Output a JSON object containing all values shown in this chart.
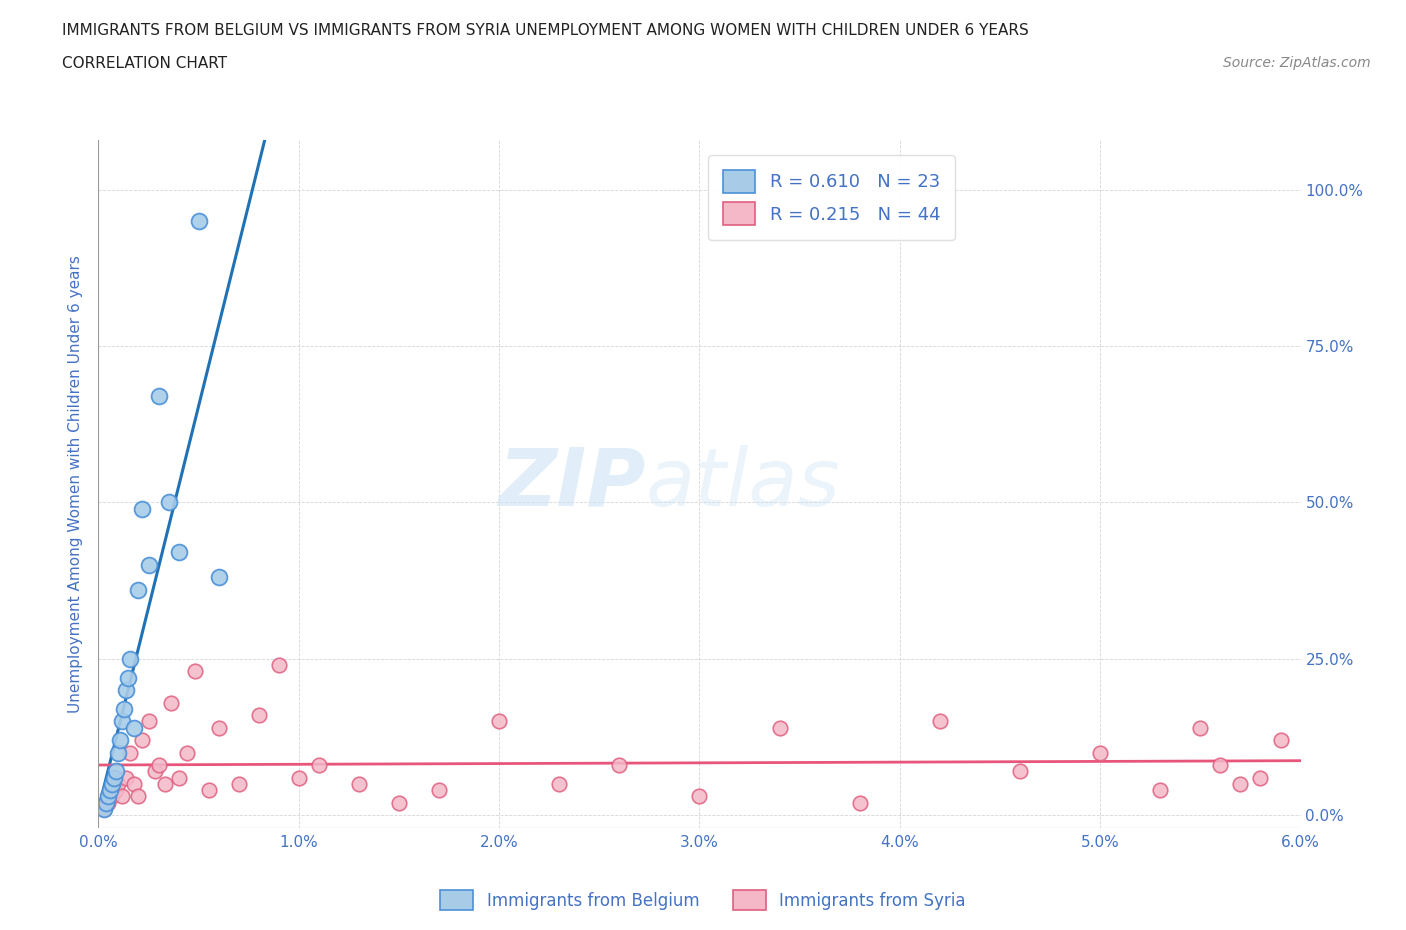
{
  "title_line1": "IMMIGRANTS FROM BELGIUM VS IMMIGRANTS FROM SYRIA UNEMPLOYMENT AMONG WOMEN WITH CHILDREN UNDER 6 YEARS",
  "title_line2": "CORRELATION CHART",
  "source": "Source: ZipAtlas.com",
  "ylabel": "Unemployment Among Women with Children Under 6 years",
  "watermark_zip": "ZIP",
  "watermark_atlas": "atlas",
  "belgium_color": "#a8cce8",
  "belgium_edge_color": "#4a90d9",
  "syria_color": "#f4b8c8",
  "syria_edge_color": "#e06080",
  "belgium_line_color": "#2171b5",
  "syria_line_color": "#e8557a",
  "legend_text_color": "#4472C4",
  "axis_color": "#4472C4",
  "R_belgium": 0.61,
  "N_belgium": 23,
  "R_syria": 0.215,
  "N_syria": 44,
  "xlim": [
    0.0,
    0.06
  ],
  "ylim": [
    -0.02,
    1.08
  ],
  "xtick_vals": [
    0.0,
    0.01,
    0.02,
    0.03,
    0.04,
    0.05,
    0.06
  ],
  "ytick_vals": [
    0.0,
    0.25,
    0.5,
    0.75,
    1.0
  ],
  "belgium_x": [
    0.0003,
    0.0004,
    0.0005,
    0.0006,
    0.0007,
    0.0008,
    0.0009,
    0.001,
    0.0011,
    0.0012,
    0.0013,
    0.0014,
    0.0015,
    0.0016,
    0.0018,
    0.002,
    0.0022,
    0.0025,
    0.003,
    0.0035,
    0.004,
    0.005,
    0.006
  ],
  "belgium_y": [
    0.01,
    0.02,
    0.03,
    0.04,
    0.05,
    0.06,
    0.07,
    0.1,
    0.12,
    0.15,
    0.17,
    0.2,
    0.22,
    0.25,
    0.14,
    0.36,
    0.49,
    0.4,
    0.67,
    0.5,
    0.42,
    0.95,
    0.38
  ],
  "syria_x": [
    0.0003,
    0.0005,
    0.0007,
    0.0009,
    0.001,
    0.0012,
    0.0014,
    0.0016,
    0.0018,
    0.002,
    0.0022,
    0.0025,
    0.0028,
    0.003,
    0.0033,
    0.0036,
    0.004,
    0.0044,
    0.0048,
    0.0055,
    0.006,
    0.007,
    0.008,
    0.009,
    0.01,
    0.011,
    0.013,
    0.015,
    0.017,
    0.02,
    0.023,
    0.026,
    0.03,
    0.034,
    0.038,
    0.042,
    0.046,
    0.05,
    0.053,
    0.055,
    0.056,
    0.057,
    0.058,
    0.059
  ],
  "syria_y": [
    0.01,
    0.02,
    0.03,
    0.04,
    0.05,
    0.03,
    0.06,
    0.1,
    0.05,
    0.03,
    0.12,
    0.15,
    0.07,
    0.08,
    0.05,
    0.18,
    0.06,
    0.1,
    0.23,
    0.04,
    0.14,
    0.05,
    0.16,
    0.24,
    0.06,
    0.08,
    0.05,
    0.02,
    0.04,
    0.15,
    0.05,
    0.08,
    0.03,
    0.14,
    0.02,
    0.15,
    0.07,
    0.1,
    0.04,
    0.14,
    0.08,
    0.05,
    0.06,
    0.12
  ],
  "background_color": "#ffffff",
  "grid_color": "#cccccc"
}
